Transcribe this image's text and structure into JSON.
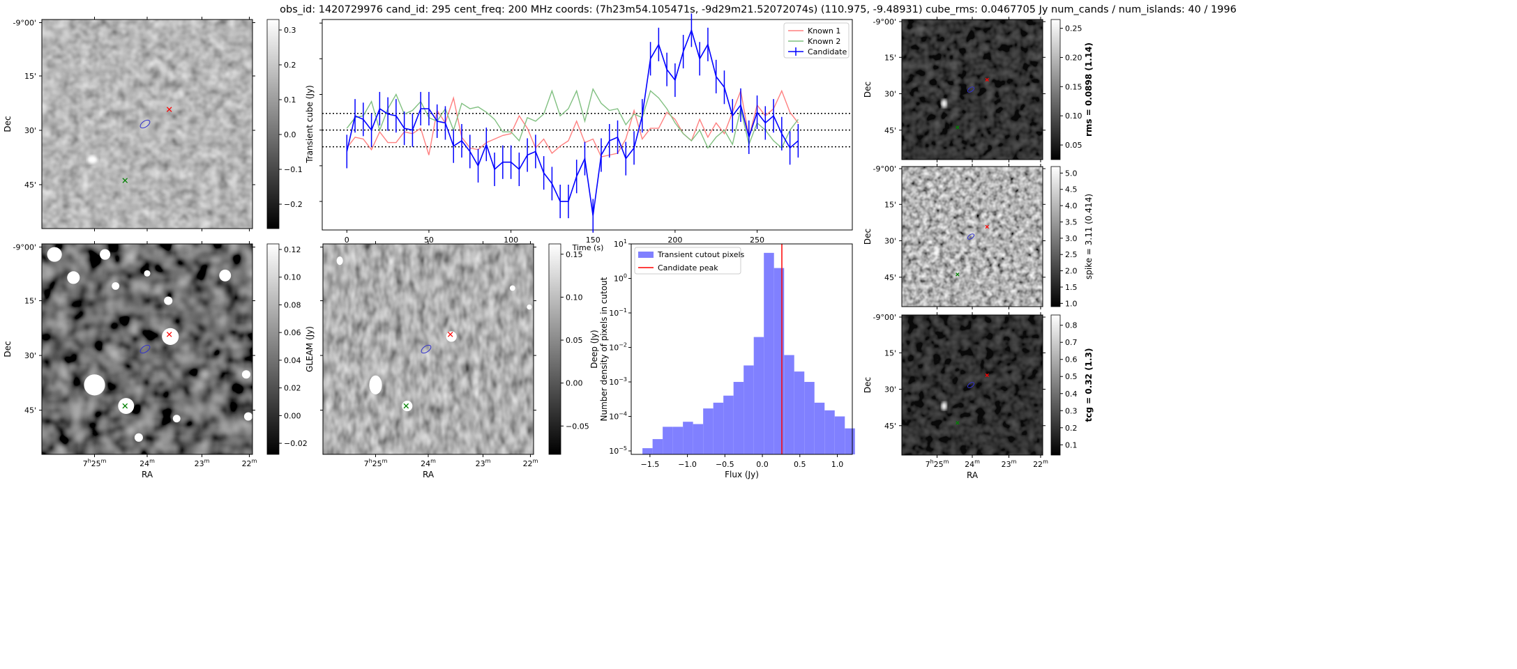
{
  "title": "obs_id: 1420729976 cand_id: 295 cent_freq: 200 MHz coords: (7h23m54.105471s, -9d29m21.52072074s) (110.975, -9.48931) cube_rms: 0.0467705 Jy num_cands / num_islands: 40 / 1996",
  "sky_axes": {
    "dec_ticks": [
      "-9°00'",
      "15'",
      "30'",
      "45'"
    ],
    "ra_ticks": [
      "7h25m",
      "24m",
      "23m",
      "22m"
    ],
    "dec_label": "Dec",
    "ra_label": "RA"
  },
  "panels": {
    "transient": {
      "cbar_label": "Transient cube (Jy)",
      "cbar_ticks": [
        "-0.2",
        "-0.1",
        "0.0",
        "0.1",
        "0.2",
        "0.3"
      ],
      "cbar_range": [
        -0.27,
        0.33
      ]
    },
    "gleam": {
      "cbar_label": "GLEAM (Jy)",
      "cbar_ticks": [
        "-0.02",
        "0.00",
        "0.02",
        "0.04",
        "0.06",
        "0.08",
        "0.10",
        "0.12"
      ],
      "cbar_range": [
        -0.028,
        0.124
      ]
    },
    "deep": {
      "cbar_label": "Deep (Jy)",
      "cbar_ticks": [
        "-0.05",
        "0.00",
        "0.05",
        "0.10",
        "0.15"
      ],
      "cbar_range": [
        -0.083,
        0.162
      ]
    },
    "rms": {
      "cbar_label": "rms = 0.0898 (1.14)",
      "label_bold": true,
      "cbar_ticks": [
        "0.05",
        "0.10",
        "0.15",
        "0.20",
        "0.25"
      ],
      "cbar_range": [
        0.025,
        0.265
      ]
    },
    "spike": {
      "cbar_label": "spike = 3.11 (0.414)",
      "label_bold": false,
      "cbar_ticks": [
        "1.0",
        "1.5",
        "2.0",
        "2.5",
        "3.0",
        "3.5",
        "4.0",
        "4.5",
        "5.0"
      ],
      "cbar_range": [
        0.9,
        5.2
      ]
    },
    "tcg": {
      "cbar_label": "tcg = 0.32 (1.3)",
      "label_bold": true,
      "cbar_ticks": [
        "0.1",
        "0.2",
        "0.3",
        "0.4",
        "0.5",
        "0.6",
        "0.7",
        "0.8"
      ],
      "cbar_range": [
        0.04,
        0.86
      ]
    }
  },
  "chart_data": [
    {
      "type": "line",
      "title": "",
      "xlabel": "Time (s)",
      "ylabel": "",
      "xlim": [
        -15,
        308
      ],
      "ylim": [
        -0.28,
        0.31
      ],
      "x_ticks": [
        "0",
        "50",
        "100",
        "150",
        "200",
        "250"
      ],
      "x_step": 5,
      "hlines": [
        -0.0467705,
        0.0,
        0.0467705
      ],
      "legend_position": "top-right",
      "series": [
        {
          "name": "Known 1",
          "color": "#ff7f7f",
          "values": [
            -0.05,
            -0.02,
            -0.025,
            -0.055,
            -0.005,
            -0.035,
            -0.035,
            -0.005,
            -0.01,
            0.005,
            -0.07,
            0.055,
            0.02,
            0.09,
            -0.02,
            -0.05,
            -0.055,
            -0.035,
            -0.025,
            -0.015,
            -0.01,
            0.04,
            0.005,
            -0.05,
            -0.025,
            -0.065,
            -0.045,
            -0.03,
            0.025,
            -0.035,
            -0.025,
            -0.075,
            -0.07,
            -0.065,
            -0.025,
            0.055,
            -0.025,
            0.005,
            0.005,
            0.05,
            0.03,
            -0.01,
            -0.03,
            0.03,
            -0.02,
            0.02,
            -0.01,
            0.05,
            0.11,
            -0.02,
            0.07,
            0.04,
            0.06,
            0.11,
            0.05,
            0.02
          ]
        },
        {
          "name": "Known 2",
          "color": "#7fbf7f",
          "values": [
            0.005,
            0.035,
            0.04,
            0.08,
            0.0,
            0.06,
            0.1,
            0.045,
            0.055,
            0.08,
            0.035,
            0.025,
            0.06,
            0.0,
            0.075,
            0.06,
            0.065,
            0.05,
            0.03,
            -0.005,
            -0.005,
            -0.03,
            0.035,
            0.025,
            0.045,
            0.11,
            0.04,
            0.06,
            0.11,
            0.025,
            0.115,
            0.075,
            0.055,
            0.06,
            0.015,
            0.045,
            0.035,
            0.11,
            0.09,
            0.06,
            0.02,
            -0.01,
            -0.03,
            0.0,
            -0.05,
            -0.02,
            0.0,
            -0.04,
            0.06,
            -0.04,
            0.02,
            0.0,
            -0.03,
            -0.05,
            0.0,
            0.03
          ]
        },
        {
          "name": "Candidate",
          "color": "#0000ff",
          "error": 0.047,
          "values": [
            -0.06,
            0.04,
            0.03,
            0.0,
            0.06,
            0.045,
            0.04,
            0.005,
            0.0,
            0.06,
            0.06,
            0.025,
            0.02,
            -0.045,
            -0.03,
            -0.06,
            -0.1,
            -0.04,
            -0.11,
            -0.09,
            -0.09,
            -0.11,
            -0.07,
            -0.06,
            -0.12,
            -0.15,
            -0.2,
            -0.2,
            -0.13,
            -0.08,
            -0.24,
            -0.07,
            -0.03,
            -0.02,
            -0.08,
            -0.05,
            0.04,
            0.2,
            0.24,
            0.17,
            0.14,
            0.22,
            0.28,
            0.2,
            0.24,
            0.15,
            0.12,
            0.04,
            0.07,
            -0.02,
            0.05,
            0.02,
            0.04,
            -0.01,
            -0.05,
            -0.03
          ]
        }
      ]
    },
    {
      "type": "bar",
      "xlabel": "Flux (Jy)",
      "ylabel": "Number density of pixels in cutout",
      "xlim": [
        -1.75,
        1.2
      ],
      "ylim_log10": [
        -5.1,
        1.0
      ],
      "x_ticks": [
        "-1.5",
        "-1.0",
        "-0.5",
        "0.0",
        "0.5",
        "1.0"
      ],
      "y_ticks": [
        "10^-5",
        "10^-4",
        "10^-3",
        "10^-2",
        "10^-1",
        "10^0",
        "10^1"
      ],
      "bin_start": -1.6,
      "bin_width": 0.135,
      "values": [
        1.2e-05,
        2.2e-05,
        5e-05,
        5e-05,
        7e-05,
        6e-05,
        0.00017,
        0.00025,
        0.0004,
        0.001,
        0.003,
        0.02,
        5.5,
        2.0,
        0.006,
        0.002,
        0.001,
        0.00025,
        0.00015,
        0.0001,
        4.5e-05
      ],
      "vline": 0.26,
      "legend_position": "top-left",
      "legend": [
        "Transient cutout pixels",
        "Candidate peak"
      ],
      "colors": {
        "hist": "#8080ff",
        "vline": "#ff0000"
      }
    }
  ]
}
